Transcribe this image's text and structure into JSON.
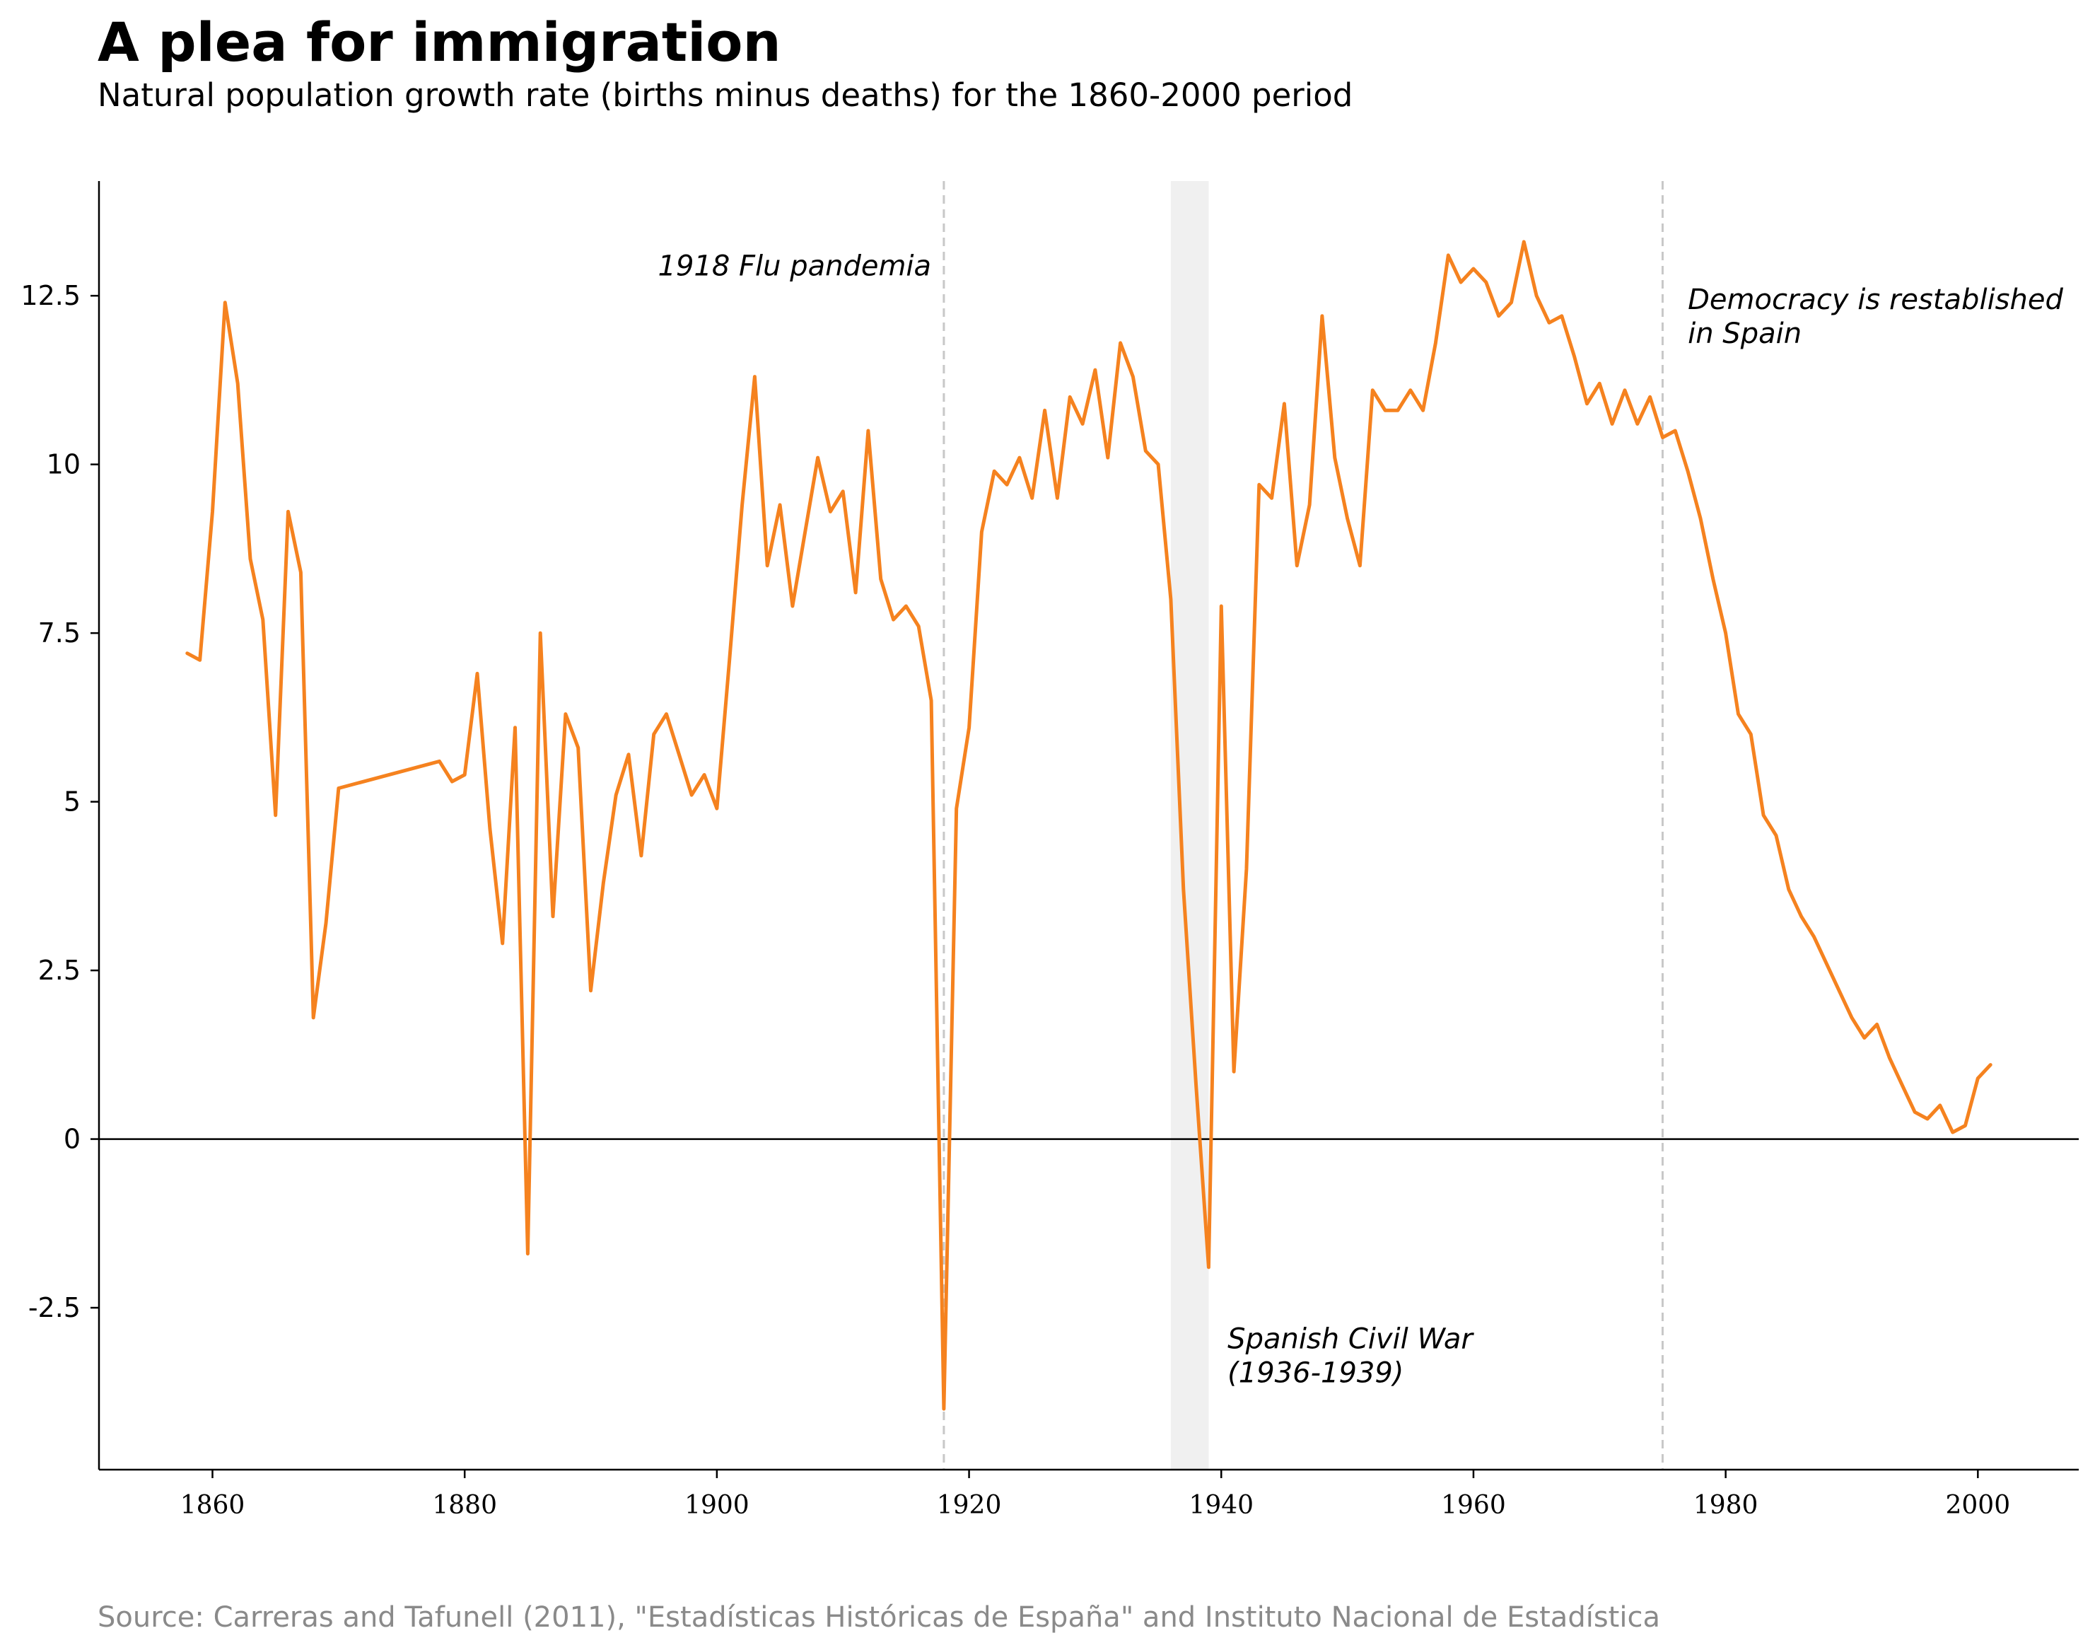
{
  "colors": {
    "line": "#f5821f",
    "axis": "#000000",
    "event_line": "#c8c8c8",
    "shade": "#f0f0f0",
    "source_text": "#8a8a8a"
  },
  "chart_data": {
    "type": "line",
    "title": "A plea for immigration",
    "subtitle": "Natural population growth rate (births minus deaths) for the 1860-2000 period",
    "source": "Source: Carreras and Tafunell (2011), \"Estadísticas Históricas de España\" and Instituto Nacional de Estadística",
    "xlabel": "",
    "ylabel": "",
    "xlim": [
      1851,
      2008
    ],
    "ylim": [
      -4.9,
      14.2
    ],
    "grid": false,
    "x_ticks": [
      1860,
      1880,
      1900,
      1920,
      1940,
      1960,
      1980,
      2000
    ],
    "x_tick_labels": [
      "1860",
      "1880",
      "1900",
      "1920",
      "1940",
      "1960",
      "1980",
      "2000"
    ],
    "y_ticks": [
      -2.5,
      0,
      2.5,
      5,
      7.5,
      10,
      12.5
    ],
    "y_tick_labels": [
      "-2.5",
      "0",
      "2.5",
      "5",
      "7.5",
      "10",
      "12.5"
    ],
    "reference_lines": [
      {
        "name": "zero-line",
        "y": 0
      },
      {
        "name": "flu-pandemic-line",
        "x": 1918
      },
      {
        "name": "democracy-line",
        "x": 1975
      }
    ],
    "shaded_regions": [
      {
        "name": "civil-war-band",
        "x_start": 1936,
        "x_end": 1939
      }
    ],
    "annotations": [
      {
        "name": "flu-pandemic-label",
        "lines": [
          "1918 Flu pandemia"
        ],
        "x": 1917,
        "y": 12.8,
        "anchor": "end"
      },
      {
        "name": "democracy-label",
        "lines": [
          "Democracy is restablished",
          "in Spain"
        ],
        "x": 1977,
        "y": 12.3,
        "anchor": "start"
      },
      {
        "name": "civil-war-label",
        "lines": [
          "Spanish Civil War",
          "(1936-1939)"
        ],
        "x": 1940.5,
        "y": -3.1,
        "anchor": "start"
      }
    ],
    "series": [
      {
        "name": "Natural growth rate",
        "x": [
          1858,
          1859,
          1860,
          1861,
          1862,
          1863,
          1864,
          1865,
          1866,
          1867,
          1868,
          1869,
          1870,
          1878,
          1879,
          1880,
          1881,
          1882,
          1883,
          1884,
          1885,
          1886,
          1887,
          1888,
          1889,
          1890,
          1891,
          1892,
          1893,
          1894,
          1895,
          1896,
          1897,
          1898,
          1899,
          1900,
          1901,
          1902,
          1903,
          1904,
          1905,
          1906,
          1907,
          1908,
          1909,
          1910,
          1911,
          1912,
          1913,
          1914,
          1915,
          1916,
          1917,
          1918,
          1919,
          1920,
          1921,
          1922,
          1923,
          1924,
          1925,
          1926,
          1927,
          1928,
          1929,
          1930,
          1931,
          1932,
          1933,
          1934,
          1935,
          1936,
          1937,
          1938,
          1939,
          1940,
          1941,
          1942,
          1943,
          1944,
          1945,
          1946,
          1947,
          1948,
          1949,
          1950,
          1951,
          1952,
          1953,
          1954,
          1955,
          1956,
          1957,
          1958,
          1959,
          1960,
          1961,
          1962,
          1963,
          1964,
          1965,
          1966,
          1967,
          1968,
          1969,
          1970,
          1971,
          1972,
          1973,
          1974,
          1975,
          1976,
          1977,
          1978,
          1979,
          1980,
          1981,
          1982,
          1983,
          1984,
          1985,
          1986,
          1987,
          1988,
          1989,
          1990,
          1991,
          1992,
          1993,
          1994,
          1995,
          1996,
          1997,
          1998,
          1999,
          2000,
          2001
        ],
        "values": [
          7.2,
          7.1,
          9.3,
          12.4,
          11.2,
          8.6,
          7.7,
          4.8,
          9.3,
          8.4,
          1.8,
          3.2,
          5.2,
          5.6,
          5.3,
          5.4,
          6.9,
          4.6,
          2.9,
          6.1,
          -1.7,
          7.5,
          3.3,
          6.3,
          5.8,
          2.2,
          3.8,
          5.1,
          5.7,
          4.2,
          6.0,
          6.3,
          5.7,
          5.1,
          5.4,
          4.9,
          7.1,
          9.4,
          11.3,
          8.5,
          9.4,
          7.9,
          9.0,
          10.1,
          9.3,
          9.6,
          8.1,
          10.5,
          8.3,
          7.7,
          7.9,
          7.6,
          6.5,
          -4.0,
          4.9,
          6.1,
          9.0,
          9.9,
          9.7,
          10.1,
          9.5,
          10.8,
          9.5,
          11.0,
          10.6,
          11.4,
          10.1,
          11.8,
          11.3,
          10.2,
          10.0,
          8.0,
          3.7,
          0.8,
          -1.9,
          7.9,
          1.0,
          4.0,
          9.7,
          9.5,
          10.9,
          8.5,
          9.4,
          12.2,
          10.1,
          9.2,
          8.5,
          11.1,
          10.8,
          10.8,
          11.1,
          10.8,
          11.8,
          13.1,
          12.7,
          12.9,
          12.7,
          12.2,
          12.4,
          13.3,
          12.5,
          12.1,
          12.2,
          11.6,
          10.9,
          11.2,
          10.6,
          11.1,
          10.6,
          11.0,
          10.4,
          10.5,
          9.9,
          9.2,
          8.3,
          7.5,
          6.3,
          6.0,
          4.8,
          4.5,
          3.7,
          3.3,
          3.0,
          2.6,
          2.2,
          1.8,
          1.5,
          1.7,
          1.2,
          0.8,
          0.4,
          0.3,
          0.5,
          0.1,
          0.2,
          0.9,
          1.1
        ]
      }
    ]
  }
}
